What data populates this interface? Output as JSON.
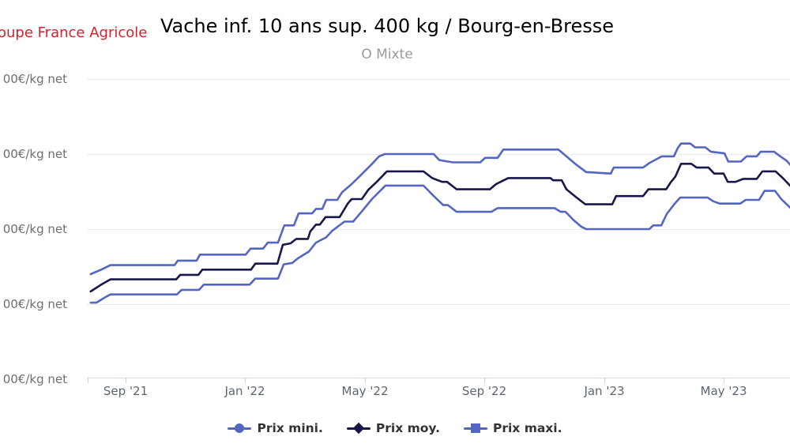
{
  "header": {
    "logo_text": "oupe France Agricole",
    "title": "Vache inf. 10 ans sup. 400 kg / Bourg-en-Bresse",
    "subtitle": "O Mixte"
  },
  "colors": {
    "brand_red": "#d4212e",
    "line_min_max": "#5565c2",
    "line_moy": "#18174a",
    "legend_text": "#333333",
    "grid": "#eaeaec"
  },
  "y_axis": {
    "unit": "€/kg net",
    "labels": [
      "00€/kg net",
      "00€/kg net",
      "00€/kg net",
      "00€/kg net",
      "00€/kg net"
    ],
    "gridline_values": [
      6.0,
      5.0,
      4.0,
      3.0,
      2.0
    ],
    "note_labels_clipped_at_left_edge": true
  },
  "x_axis": {
    "labels": [
      "Sep '21",
      "Jan '22",
      "May '22",
      "Sep '22",
      "Jan '23",
      "May '23"
    ]
  },
  "chart_data": {
    "type": "line",
    "title": "Vache inf. 10 ans sup. 400 kg / Bourg-en-Bresse",
    "subtitle": "O Mixte",
    "ylabel": "€/kg net",
    "ylim": [
      2.0,
      6.0
    ],
    "grid": "horizontal",
    "legend_position": "bottom",
    "x_unit": "months_since_2021-07-01",
    "x_tick_months": [
      2,
      6,
      10,
      14,
      18,
      22
    ],
    "x_tick_labels": [
      "Sep '21",
      "Jan '22",
      "May '22",
      "Sep '22",
      "Jan '23",
      "May '23"
    ],
    "series": [
      {
        "name": "Prix mini.",
        "marker": "circle",
        "color": "#5565c2",
        "points": [
          [
            0.84,
            3.02
          ],
          [
            1.03,
            3.02
          ],
          [
            1.32,
            3.09
          ],
          [
            1.5,
            3.13
          ],
          [
            3.72,
            3.13
          ],
          [
            3.88,
            3.19
          ],
          [
            4.46,
            3.19
          ],
          [
            4.62,
            3.26
          ],
          [
            6.15,
            3.26
          ],
          [
            6.34,
            3.34
          ],
          [
            7.1,
            3.34
          ],
          [
            7.29,
            3.53
          ],
          [
            7.58,
            3.55
          ],
          [
            7.76,
            3.61
          ],
          [
            8.13,
            3.7
          ],
          [
            8.37,
            3.82
          ],
          [
            8.71,
            3.89
          ],
          [
            8.92,
            3.98
          ],
          [
            9.32,
            4.1
          ],
          [
            9.61,
            4.1
          ],
          [
            9.93,
            4.25
          ],
          [
            10.24,
            4.4
          ],
          [
            10.69,
            4.58
          ],
          [
            11.96,
            4.58
          ],
          [
            12.28,
            4.45
          ],
          [
            12.62,
            4.32
          ],
          [
            12.78,
            4.32
          ],
          [
            13.07,
            4.23
          ],
          [
            14.23,
            4.23
          ],
          [
            14.44,
            4.28
          ],
          [
            16.34,
            4.28
          ],
          [
            16.55,
            4.23
          ],
          [
            16.71,
            4.23
          ],
          [
            16.98,
            4.12
          ],
          [
            17.24,
            4.03
          ],
          [
            17.4,
            4.0
          ],
          [
            19.51,
            4.0
          ],
          [
            19.64,
            4.05
          ],
          [
            19.91,
            4.05
          ],
          [
            20.09,
            4.2
          ],
          [
            20.36,
            4.34
          ],
          [
            20.54,
            4.42
          ],
          [
            21.46,
            4.42
          ],
          [
            21.65,
            4.37
          ],
          [
            21.86,
            4.34
          ],
          [
            22.55,
            4.34
          ],
          [
            22.73,
            4.39
          ],
          [
            23.18,
            4.39
          ],
          [
            23.36,
            4.51
          ],
          [
            23.71,
            4.51
          ],
          [
            23.92,
            4.4
          ],
          [
            24.26,
            4.27
          ]
        ]
      },
      {
        "name": "Prix moy.",
        "marker": "diamond",
        "color": "#18174a",
        "points": [
          [
            0.84,
            3.17
          ],
          [
            1.19,
            3.26
          ],
          [
            1.5,
            3.33
          ],
          [
            3.7,
            3.33
          ],
          [
            3.83,
            3.39
          ],
          [
            4.44,
            3.39
          ],
          [
            4.57,
            3.46
          ],
          [
            6.2,
            3.46
          ],
          [
            6.34,
            3.54
          ],
          [
            7.08,
            3.54
          ],
          [
            7.26,
            3.79
          ],
          [
            7.52,
            3.81
          ],
          [
            7.71,
            3.87
          ],
          [
            8.1,
            3.87
          ],
          [
            8.18,
            3.97
          ],
          [
            8.37,
            4.06
          ],
          [
            8.5,
            4.06
          ],
          [
            8.69,
            4.16
          ],
          [
            9.16,
            4.16
          ],
          [
            9.43,
            4.34
          ],
          [
            9.56,
            4.4
          ],
          [
            9.9,
            4.4
          ],
          [
            10.11,
            4.52
          ],
          [
            10.4,
            4.63
          ],
          [
            10.74,
            4.77
          ],
          [
            11.96,
            4.77
          ],
          [
            12.25,
            4.68
          ],
          [
            12.59,
            4.63
          ],
          [
            12.75,
            4.63
          ],
          [
            13.07,
            4.53
          ],
          [
            14.18,
            4.53
          ],
          [
            14.39,
            4.6
          ],
          [
            14.79,
            4.68
          ],
          [
            16.21,
            4.68
          ],
          [
            16.29,
            4.65
          ],
          [
            16.58,
            4.65
          ],
          [
            16.74,
            4.53
          ],
          [
            17.08,
            4.42
          ],
          [
            17.37,
            4.33
          ],
          [
            18.27,
            4.33
          ],
          [
            18.4,
            4.44
          ],
          [
            19.3,
            4.44
          ],
          [
            19.48,
            4.53
          ],
          [
            20.07,
            4.53
          ],
          [
            20.22,
            4.62
          ],
          [
            20.38,
            4.7
          ],
          [
            20.57,
            4.87
          ],
          [
            20.91,
            4.87
          ],
          [
            21.09,
            4.82
          ],
          [
            21.49,
            4.82
          ],
          [
            21.68,
            4.74
          ],
          [
            21.99,
            4.74
          ],
          [
            22.13,
            4.63
          ],
          [
            22.39,
            4.63
          ],
          [
            22.65,
            4.67
          ],
          [
            23.1,
            4.67
          ],
          [
            23.29,
            4.77
          ],
          [
            23.73,
            4.77
          ],
          [
            23.97,
            4.68
          ],
          [
            24.26,
            4.56
          ]
        ]
      },
      {
        "name": "Prix maxi.",
        "marker": "square",
        "color": "#5565c2",
        "points": [
          [
            0.84,
            3.4
          ],
          [
            1.19,
            3.46
          ],
          [
            1.5,
            3.52
          ],
          [
            3.64,
            3.52
          ],
          [
            3.75,
            3.58
          ],
          [
            4.38,
            3.58
          ],
          [
            4.49,
            3.66
          ],
          [
            6.02,
            3.66
          ],
          [
            6.18,
            3.74
          ],
          [
            6.6,
            3.74
          ],
          [
            6.76,
            3.82
          ],
          [
            7.1,
            3.82
          ],
          [
            7.31,
            4.05
          ],
          [
            7.63,
            4.05
          ],
          [
            7.79,
            4.21
          ],
          [
            8.24,
            4.21
          ],
          [
            8.37,
            4.27
          ],
          [
            8.58,
            4.27
          ],
          [
            8.71,
            4.39
          ],
          [
            9.08,
            4.39
          ],
          [
            9.24,
            4.49
          ],
          [
            9.56,
            4.6
          ],
          [
            9.87,
            4.72
          ],
          [
            10.22,
            4.86
          ],
          [
            10.48,
            4.97
          ],
          [
            10.67,
            5.0
          ],
          [
            12.3,
            5.0
          ],
          [
            12.49,
            4.92
          ],
          [
            12.94,
            4.89
          ],
          [
            13.86,
            4.89
          ],
          [
            14.02,
            4.95
          ],
          [
            14.44,
            4.95
          ],
          [
            14.63,
            5.06
          ],
          [
            16.47,
            5.06
          ],
          [
            16.74,
            4.97
          ],
          [
            17.03,
            4.87
          ],
          [
            17.4,
            4.76
          ],
          [
            18.22,
            4.74
          ],
          [
            18.32,
            4.82
          ],
          [
            19.3,
            4.82
          ],
          [
            19.51,
            4.88
          ],
          [
            19.93,
            4.97
          ],
          [
            20.33,
            4.97
          ],
          [
            20.46,
            5.08
          ],
          [
            20.57,
            5.14
          ],
          [
            20.88,
            5.14
          ],
          [
            21.04,
            5.09
          ],
          [
            21.38,
            5.09
          ],
          [
            21.57,
            5.03
          ],
          [
            22.02,
            5.01
          ],
          [
            22.15,
            4.9
          ],
          [
            22.57,
            4.9
          ],
          [
            22.76,
            4.97
          ],
          [
            23.1,
            4.97
          ],
          [
            23.23,
            5.03
          ],
          [
            23.68,
            5.03
          ],
          [
            23.89,
            4.97
          ],
          [
            24.1,
            4.91
          ],
          [
            24.26,
            4.84
          ]
        ]
      }
    ]
  }
}
